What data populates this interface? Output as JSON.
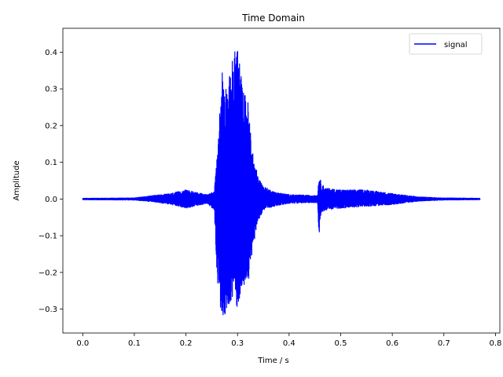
{
  "chart_data": {
    "type": "line",
    "title": "Time Domain",
    "xlabel": "Time / s",
    "ylabel": "Amplitude",
    "xlim": [
      -0.0385,
      0.8085
    ],
    "ylim": [
      -0.365,
      0.465
    ],
    "x_ticks": [
      {
        "value": 0.0,
        "label": "0.0"
      },
      {
        "value": 0.1,
        "label": "0.1"
      },
      {
        "value": 0.2,
        "label": "0.2"
      },
      {
        "value": 0.3,
        "label": "0.3"
      },
      {
        "value": 0.4,
        "label": "0.4"
      },
      {
        "value": 0.5,
        "label": "0.5"
      },
      {
        "value": 0.6,
        "label": "0.6"
      },
      {
        "value": 0.7,
        "label": "0.7"
      },
      {
        "value": 0.8,
        "label": "0.8"
      }
    ],
    "y_ticks": [
      {
        "value": -0.3,
        "label": "−0.3"
      },
      {
        "value": -0.2,
        "label": "−0.2"
      },
      {
        "value": -0.1,
        "label": "−0.1"
      },
      {
        "value": 0.0,
        "label": "0.0"
      },
      {
        "value": 0.1,
        "label": "0.1"
      },
      {
        "value": 0.2,
        "label": "0.2"
      },
      {
        "value": 0.3,
        "label": "0.3"
      },
      {
        "value": 0.4,
        "label": "0.4"
      }
    ],
    "grid": false,
    "legend_position": "top-right",
    "series": [
      {
        "name": "signal",
        "color": "#0000ff",
        "envelope": {
          "t": [
            0.0,
            0.1,
            0.14,
            0.17,
            0.2,
            0.24,
            0.255,
            0.262,
            0.27,
            0.28,
            0.29,
            0.3,
            0.31,
            0.32,
            0.33,
            0.34,
            0.35,
            0.37,
            0.4,
            0.44,
            0.455,
            0.458,
            0.462,
            0.47,
            0.5,
            0.55,
            0.6,
            0.65,
            0.7,
            0.77
          ],
          "upper": [
            0.002,
            0.003,
            0.01,
            0.015,
            0.025,
            0.012,
            0.02,
            0.147,
            0.36,
            0.3,
            0.38,
            0.43,
            0.3,
            0.27,
            0.12,
            0.06,
            0.035,
            0.02,
            0.012,
            0.01,
            0.01,
            0.065,
            0.045,
            0.03,
            0.025,
            0.025,
            0.015,
            0.006,
            0.003,
            0.002
          ],
          "lower": [
            -0.002,
            -0.003,
            -0.008,
            -0.015,
            -0.025,
            -0.012,
            -0.03,
            -0.26,
            -0.33,
            -0.3,
            -0.27,
            -0.3,
            -0.23,
            -0.24,
            -0.13,
            -0.06,
            -0.03,
            -0.02,
            -0.012,
            -0.01,
            -0.01,
            -0.1,
            -0.04,
            -0.03,
            -0.025,
            -0.02,
            -0.015,
            -0.006,
            -0.003,
            -0.002
          ]
        }
      }
    ]
  }
}
